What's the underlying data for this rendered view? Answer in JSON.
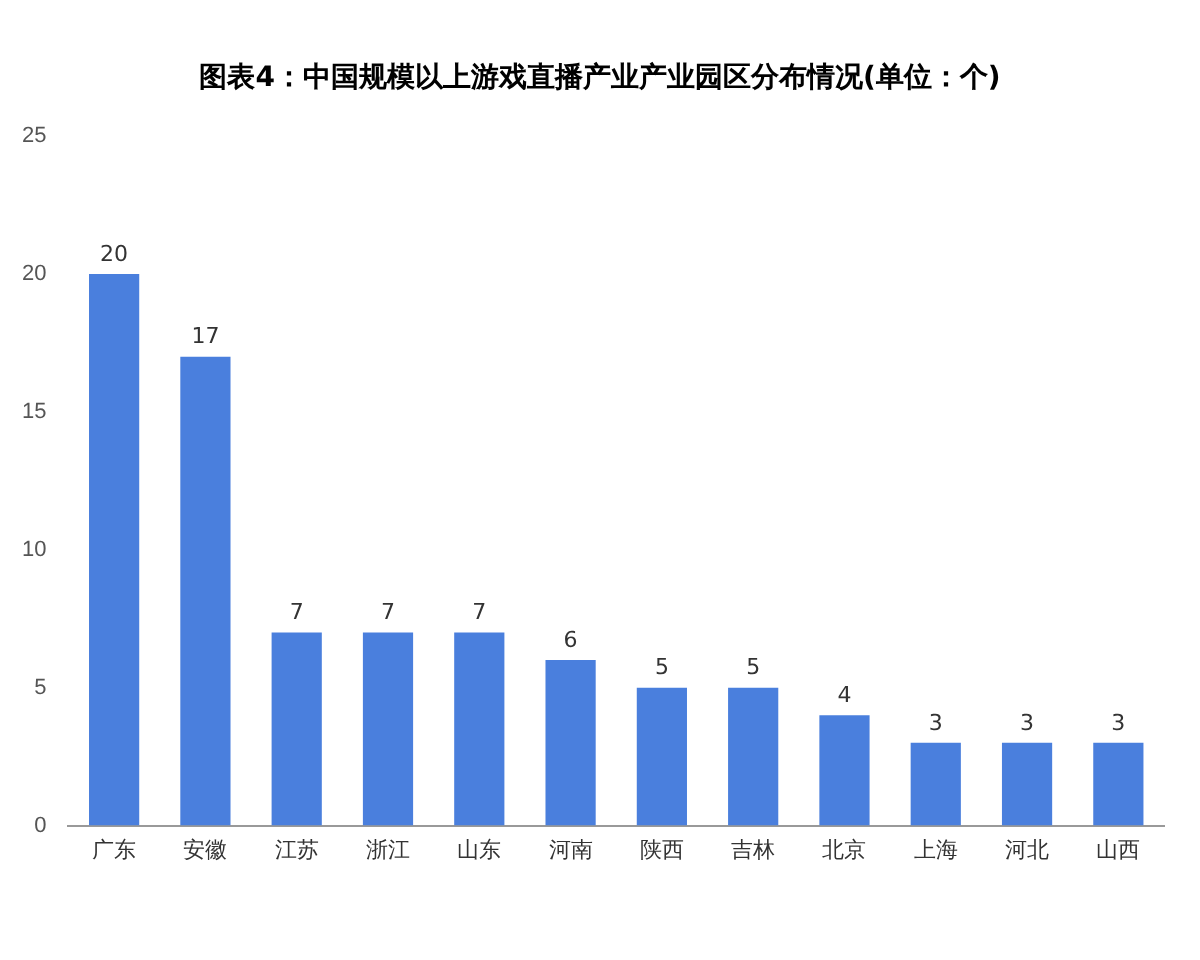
{
  "chart_data": {
    "type": "bar",
    "title": "图表4：中国规模以上游戏直播产业产业园区分布情况(单位：个)",
    "categories": [
      "广东",
      "安徽",
      "江苏",
      "浙江",
      "山东",
      "河南",
      "陕西",
      "吉林",
      "北京",
      "上海",
      "河北",
      "山西"
    ],
    "values": [
      20,
      17,
      7,
      7,
      7,
      6,
      5,
      5,
      4,
      3,
      3,
      3
    ],
    "color": "#4a7fdd",
    "ylim": [
      0,
      25
    ],
    "yticks": [
      0,
      5,
      10,
      15,
      20,
      25
    ],
    "grid": false,
    "data_labels": true,
    "legend": false
  }
}
